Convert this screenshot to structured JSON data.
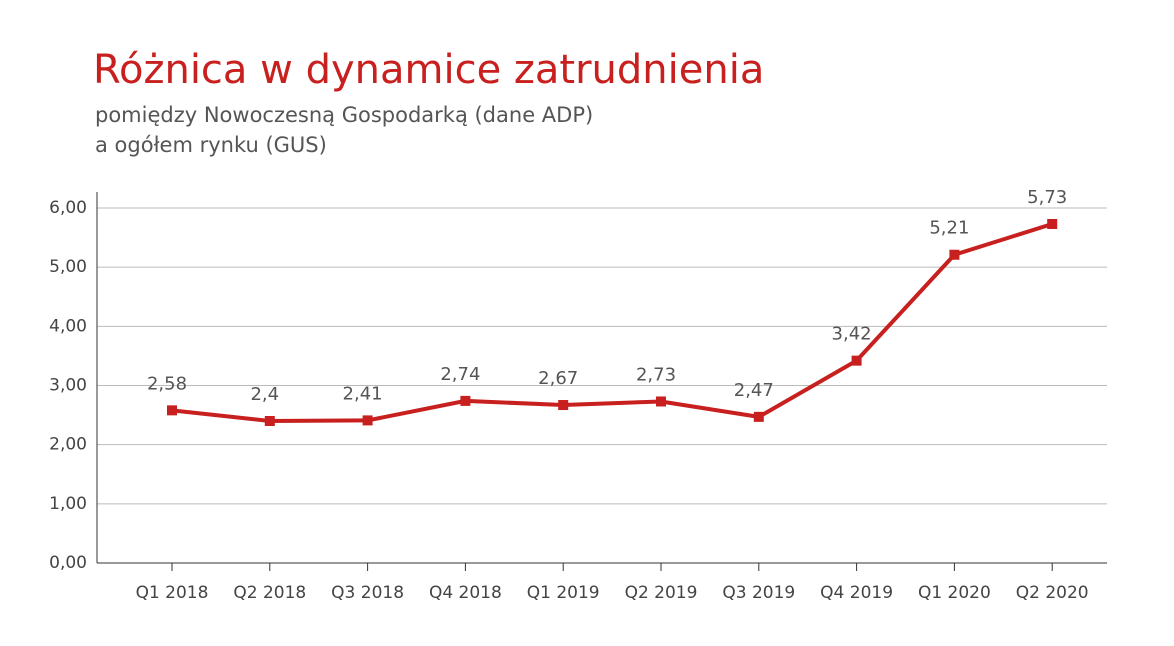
{
  "chart_data": {
    "type": "line",
    "title": "Różnica w dynamice zatrudnienia",
    "subtitle": [
      "pomiędzy Nowoczesną Gospodarką (dane ADP)",
      "a ogółem rynku (GUS)"
    ],
    "categories": [
      "Q1 2018",
      "Q2 2018",
      "Q3 2018",
      "Q4 2018",
      "Q1 2019",
      "Q2 2019",
      "Q3 2019",
      "Q4 2019",
      "Q1 2020",
      "Q2 2020"
    ],
    "values": [
      2.58,
      2.4,
      2.41,
      2.74,
      2.67,
      2.73,
      2.47,
      3.42,
      5.21,
      5.73
    ],
    "value_labels": [
      "2,58",
      "2,4",
      "2,41",
      "2,74",
      "2,67",
      "2,73",
      "2,47",
      "3,42",
      "5,21",
      "5,73"
    ],
    "color": "#c8201e",
    "ylim": [
      0,
      6
    ],
    "yticks": [
      {
        "value": 0,
        "label": "0,00"
      },
      {
        "value": 1,
        "label": "1,00"
      },
      {
        "value": 2,
        "label": "2,00"
      },
      {
        "value": 3,
        "label": "3,00"
      },
      {
        "value": 4,
        "label": "4,00"
      },
      {
        "value": 5,
        "label": "5,00"
      },
      {
        "value": 6,
        "label": "6,00"
      }
    ],
    "grid": true
  }
}
